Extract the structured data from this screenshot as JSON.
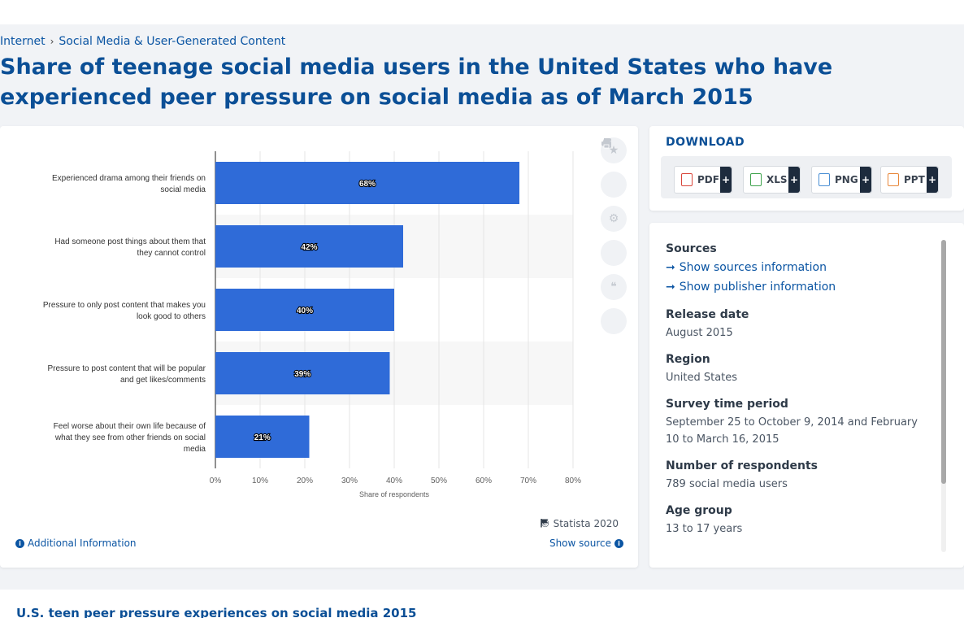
{
  "breadcrumb": {
    "item1": "Internet",
    "separator": "›",
    "item2": "Social Media & User-Generated Content"
  },
  "page_title": "Share of teenage social media users in the United States who have experienced peer pressure on social media as of March 2015",
  "chart_data": {
    "type": "bar",
    "orientation": "horizontal",
    "categories": [
      "Experienced drama among their friends on social media",
      "Had someone post things about them that they cannot control",
      "Pressure to only post content that makes you look good to others",
      "Pressure to post content that will be popular and get likes/comments",
      "Feel worse about their own life because of what they see from other friends on social media"
    ],
    "category_lines": [
      [
        "Experienced drama among their friends on",
        "social media"
      ],
      [
        "Had someone post things about them that",
        "they cannot control"
      ],
      [
        "Pressure to only post content that makes you",
        "look good to others"
      ],
      [
        "Pressure to post content that will be popular",
        "and get likes/comments"
      ],
      [
        "Feel worse about their own life because of",
        "what they see from other friends on social",
        "media"
      ]
    ],
    "values": [
      68,
      42,
      40,
      39,
      21
    ],
    "value_labels": [
      "68%",
      "42%",
      "40%",
      "39%",
      "21%"
    ],
    "xlim": [
      0,
      80
    ],
    "xticks": [
      "0%",
      "10%",
      "20%",
      "30%",
      "40%",
      "50%",
      "60%",
      "70%",
      "80%"
    ],
    "xlabel": "Share of respondents",
    "bar_color": "#2f6bd8",
    "grid": true
  },
  "chart_footer": {
    "copyright": "© Statista 2020",
    "additional_info": "Additional Information",
    "show_source": "Show source"
  },
  "toolbar_icons": [
    "star-icon",
    "bell-icon",
    "gear-icon",
    "share-icon",
    "quote-icon",
    "print-icon"
  ],
  "download": {
    "title": "DOWNLOAD",
    "buttons": [
      {
        "label": "PDF",
        "plus": "+",
        "color": "#d9463b"
      },
      {
        "label": "XLS",
        "plus": "+",
        "color": "#3fa34d"
      },
      {
        "label": "PNG",
        "plus": "+",
        "color": "#4a8fd4"
      },
      {
        "label": "PPT",
        "plus": "+",
        "color": "#e8873a"
      }
    ]
  },
  "info": {
    "sources_heading": "Sources",
    "show_sources": "Show sources information",
    "show_publisher": "Show publisher information",
    "release_date_heading": "Release date",
    "release_date": "August 2015",
    "region_heading": "Region",
    "region": "United States",
    "survey_period_heading": "Survey time period",
    "survey_period": "September 25 to October 9, 2014 and February 10 to March 16, 2015",
    "respondents_heading": "Number of respondents",
    "respondents": "789 social media users",
    "age_group_heading": "Age group",
    "age_group": "13 to 17 years"
  },
  "bottom_title": "U.S. teen peer pressure experiences on social media 2015"
}
